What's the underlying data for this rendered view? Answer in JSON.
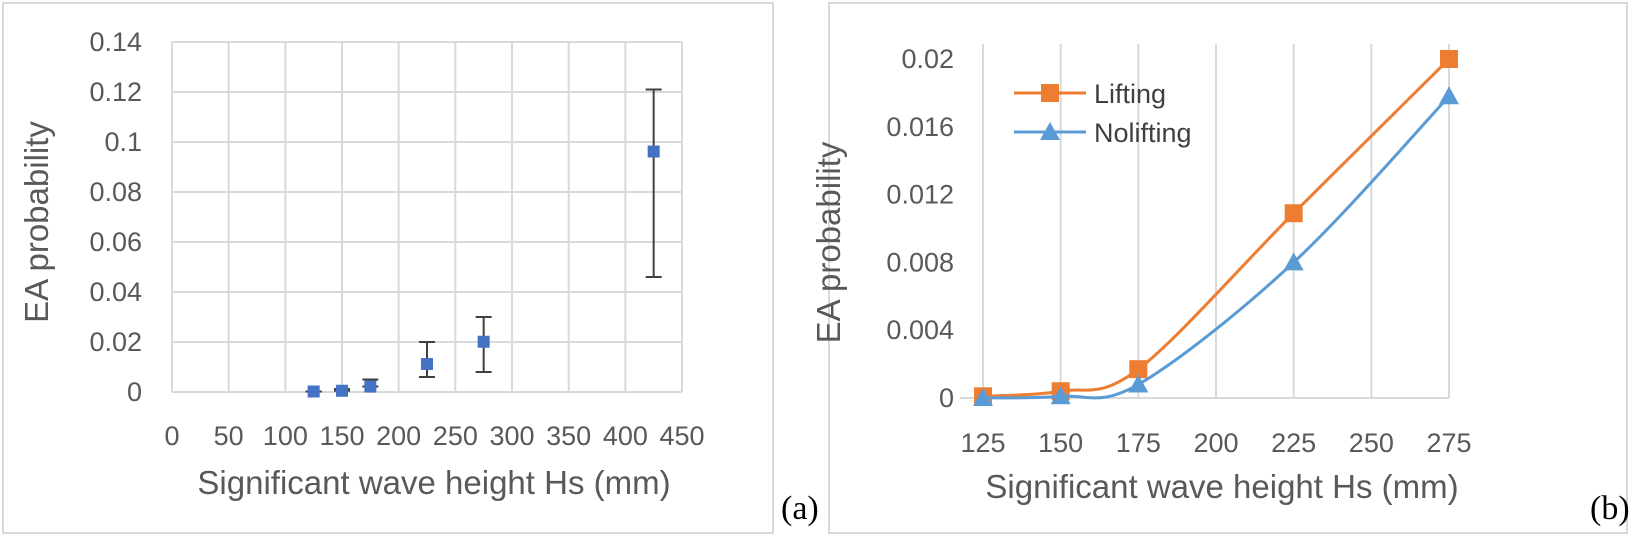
{
  "chart_data": [
    {
      "type": "scatter",
      "panel_label": "(a)",
      "title": "",
      "xlabel": "Significant wave height Hs (mm)",
      "ylabel": "EA probability",
      "xlim": [
        0,
        450
      ],
      "ylim": [
        0,
        0.14
      ],
      "xticks": [
        0,
        50,
        100,
        150,
        200,
        250,
        300,
        350,
        400,
        450
      ],
      "yticks": [
        0,
        0.02,
        0.04,
        0.06,
        0.08,
        0.1,
        0.12,
        0.14
      ],
      "xtick_labels": [
        "0",
        "50",
        "100",
        "150",
        "200",
        "250",
        "300",
        "350",
        "400",
        "450"
      ],
      "ytick_labels": [
        "0",
        "0.02",
        "0.04",
        "0.06",
        "0.08",
        "0.1",
        "0.12",
        "0.14"
      ],
      "grid": true,
      "marker_color": "#4472c4",
      "errorbar_color": "#404040",
      "points": [
        {
          "x": 125,
          "y": 0.0002,
          "err_low": 0.0002,
          "err_high": 0.0002
        },
        {
          "x": 150,
          "y": 0.0005,
          "err_low": 0.0005,
          "err_high": 0.0012
        },
        {
          "x": 175,
          "y": 0.0022,
          "err_low": 0.0022,
          "err_high": 0.005
        },
        {
          "x": 225,
          "y": 0.0112,
          "err_low": 0.006,
          "err_high": 0.02
        },
        {
          "x": 275,
          "y": 0.0201,
          "err_low": 0.008,
          "err_high": 0.03
        },
        {
          "x": 425,
          "y": 0.0962,
          "err_low": 0.046,
          "err_high": 0.121
        }
      ]
    },
    {
      "type": "line",
      "panel_label": "(b)",
      "title": "",
      "xlabel": "Significant wave height Hs (mm)",
      "ylabel": "EA probability",
      "xlim": [
        125,
        275
      ],
      "ylim": [
        0,
        0.02
      ],
      "xticks": [
        125,
        150,
        175,
        200,
        225,
        250,
        275
      ],
      "yticks": [
        0,
        0.004,
        0.008,
        0.012,
        0.016,
        0.02
      ],
      "xtick_labels": [
        "125",
        "150",
        "175",
        "200",
        "225",
        "250",
        "275"
      ],
      "ytick_labels": [
        "0",
        "0.004",
        "0.008",
        "0.012",
        "0.016",
        "0.02"
      ],
      "grid": "vertical",
      "legend": "top-left",
      "x": [
        125,
        150,
        175,
        225,
        275
      ],
      "series": [
        {
          "name": "Lifting",
          "marker": "square",
          "color": "#ed7d31",
          "values": [
            0.0001,
            0.0004,
            0.0017,
            0.0109,
            0.02
          ]
        },
        {
          "name": "Nolifting",
          "marker": "triangle",
          "color": "#5b9bd5",
          "values": [
            0.0,
            0.0001,
            0.0008,
            0.008,
            0.0178
          ]
        }
      ]
    }
  ]
}
